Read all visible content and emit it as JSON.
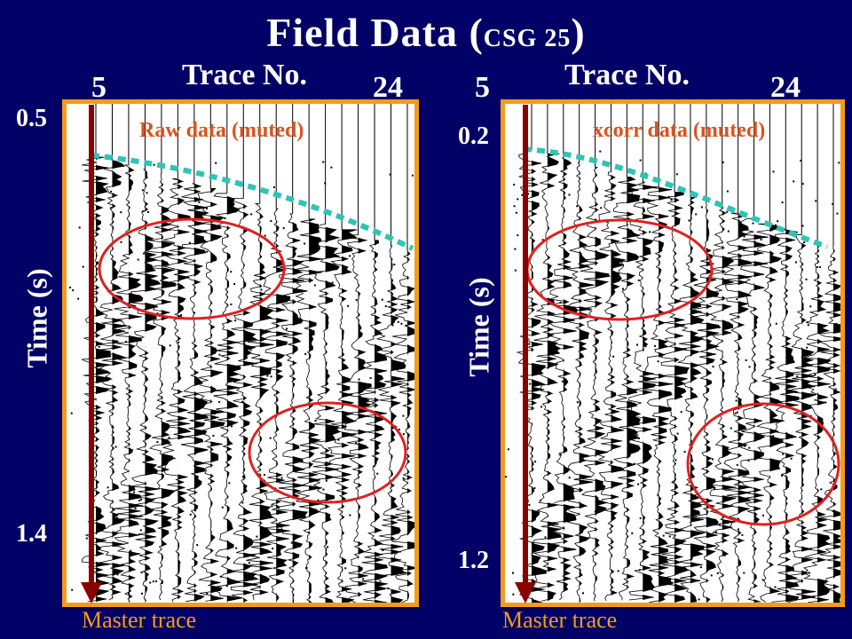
{
  "title": {
    "main": "Field Data (",
    "sub": "CSG 25",
    "close": ")"
  },
  "panels": [
    {
      "trace_axis_label": "Trace No.",
      "trace_start": "5",
      "trace_end": "24",
      "axis_label": "Time (s)",
      "time_start": "0.5",
      "time_end": "1.4",
      "data_label": "Raw data (muted)",
      "arrow_label": "Master trace"
    },
    {
      "trace_axis_label": "Trace No.",
      "trace_start": "5",
      "trace_end": "24",
      "axis_label": "Time (s)",
      "time_start": "0.2",
      "time_end": "1.2",
      "data_label": "xcorr data (muted)",
      "arrow_label": "Master trace"
    }
  ],
  "colors": {
    "background": "#000066",
    "frame": "#f39c1c",
    "mute_line": "#2ec4b6",
    "ellipse": "#e02020",
    "arrow": "#8b0000",
    "data_label": "#d9531e"
  }
}
